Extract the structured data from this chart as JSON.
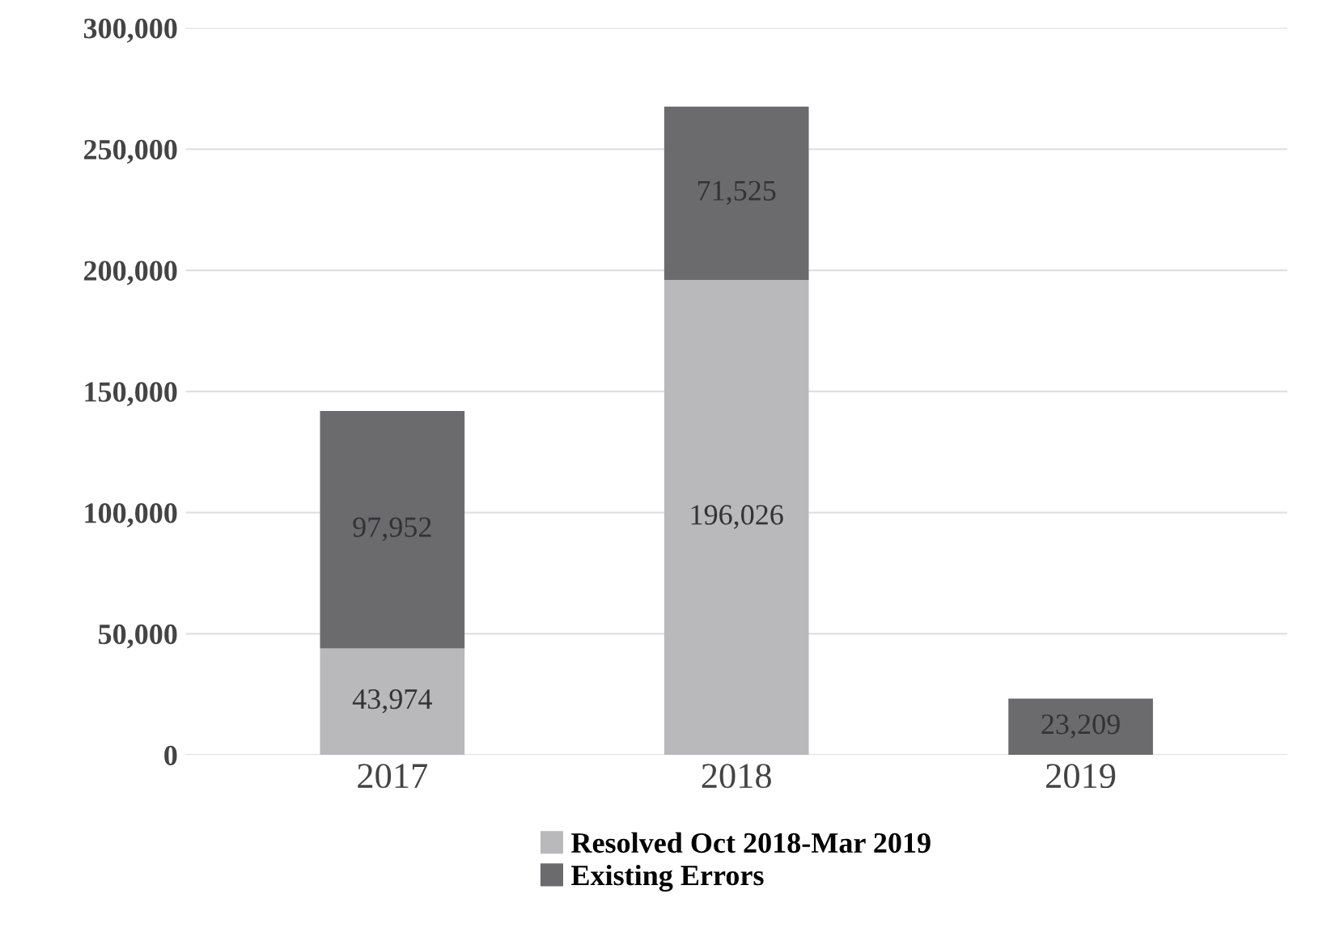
{
  "chart_data": {
    "type": "bar",
    "stacked": true,
    "categories": [
      "2017",
      "2018",
      "2019"
    ],
    "series": [
      {
        "name": "Resolved Oct 2018-Mar 2019",
        "color": "#b9b9bb",
        "values": [
          43974,
          196026,
          null
        ],
        "value_labels": [
          "43,974",
          "196,026",
          null
        ]
      },
      {
        "name": "Existing Errors",
        "color": "#6b6b6d",
        "values": [
          97952,
          71525,
          23209
        ],
        "value_labels": [
          "97,952",
          "71,525",
          "23,209"
        ]
      }
    ],
    "ylim": [
      0,
      300000
    ],
    "yticks": [
      {
        "value": 0,
        "label": "0"
      },
      {
        "value": 50000,
        "label": "50,000"
      },
      {
        "value": 100000,
        "label": "100,000"
      },
      {
        "value": 150000,
        "label": "150,000"
      },
      {
        "value": 200000,
        "label": "200,000"
      },
      {
        "value": 250000,
        "label": "250,000"
      },
      {
        "value": 300000,
        "label": "300,000"
      }
    ],
    "grid": "y",
    "legend": "bottom"
  }
}
